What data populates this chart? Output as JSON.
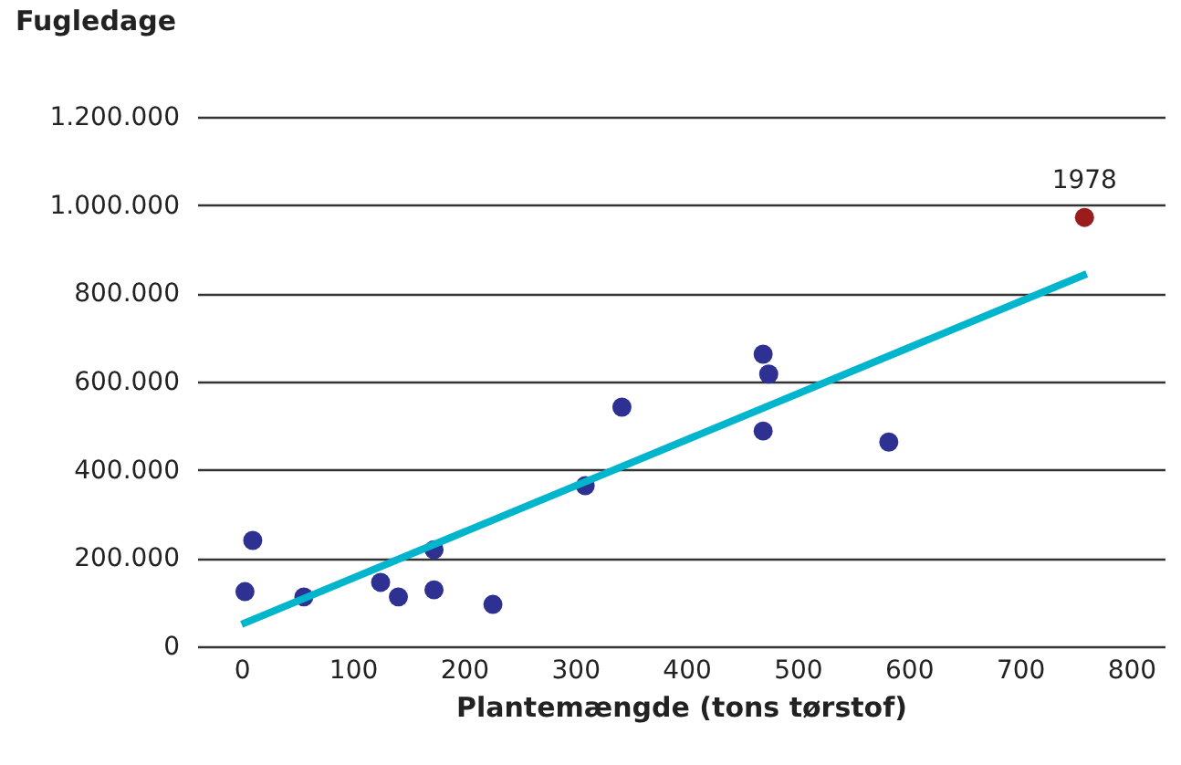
{
  "chart_data": {
    "type": "scatter",
    "ylabel": "Fugledage",
    "xlabel": "Plantemængde (tons tørstof)",
    "xlim": [
      -40,
      830
    ],
    "xticks": [
      0,
      100,
      200,
      300,
      400,
      500,
      600,
      700,
      800
    ],
    "ylim": [
      0,
      1200000
    ],
    "yticks": [
      {
        "value": 0,
        "label": "0"
      },
      {
        "value": 200000,
        "label": "200.000"
      },
      {
        "value": 400000,
        "label": "400.000"
      },
      {
        "value": 600000,
        "label": "600.000"
      },
      {
        "value": 800000,
        "label": "800.000"
      },
      {
        "value": 1000000,
        "label": "1.000.000"
      },
      {
        "value": 1200000,
        "label": "1.200.000"
      }
    ],
    "grid": "y",
    "legend": false,
    "series": [
      {
        "type": "scatter",
        "marker": "circle",
        "color": "#2e3192",
        "x": [
          3,
          10,
          56,
          125,
          141,
          173,
          173,
          226,
          309,
          342,
          469,
          474,
          469,
          582
        ],
        "values": [
          124000,
          240000,
          112000,
          145000,
          112000,
          219000,
          128000,
          95000,
          364000,
          542000,
          662000,
          617000,
          488000,
          463000
        ]
      },
      {
        "type": "scatter",
        "marker": "circle",
        "color": "#9b1c1c",
        "x": [
          758
        ],
        "values": [
          972000
        ]
      },
      {
        "type": "line",
        "color": "#00b5cc",
        "line_style": "solid",
        "x": [
          0,
          760
        ],
        "values": [
          50000,
          844000
        ]
      }
    ],
    "annotations": [
      {
        "text": "1978",
        "x": 758,
        "y": 972000
      }
    ]
  }
}
